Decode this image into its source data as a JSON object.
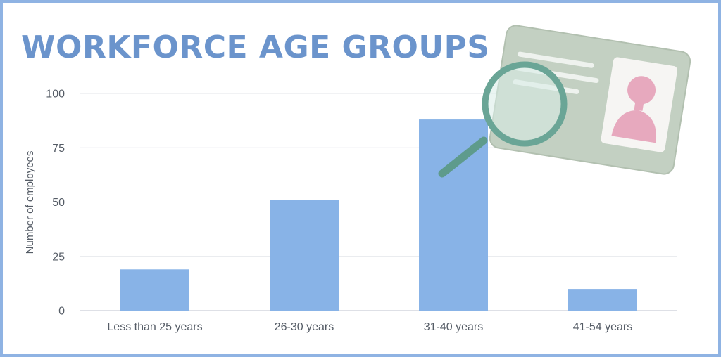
{
  "title": "WORKFORCE AGE GROUPS",
  "colors": {
    "bar": "#88b3e7",
    "title": "#6b94cc",
    "frame": "#8fb3e3"
  },
  "illustration": {
    "icon": "id-card-magnifier-icon"
  },
  "chart_data": {
    "type": "bar",
    "categories": [
      "Less than 25 years",
      "26-30 years",
      "31-40 years",
      "41-54 years"
    ],
    "values": [
      19,
      51,
      88,
      10
    ],
    "ylabel": "Number of employees",
    "xlabel": "",
    "ylim": [
      0,
      100
    ],
    "yticks": [
      0,
      25,
      50,
      75,
      100
    ],
    "ytick_labels": [
      "0",
      "25",
      "50",
      "75",
      "100"
    ],
    "grid": true,
    "legend": "none"
  }
}
